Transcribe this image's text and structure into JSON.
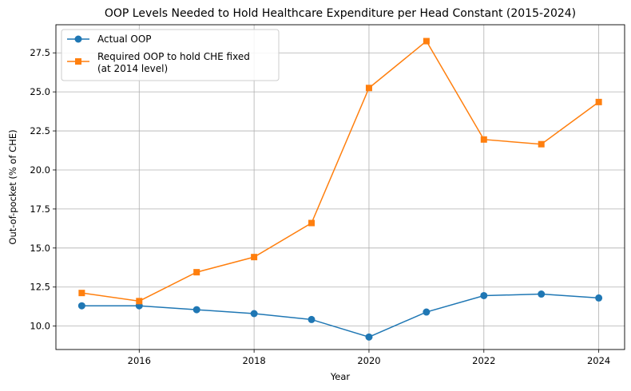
{
  "chart_data": {
    "type": "line",
    "title": "OOP Levels Needed to Hold Healthcare Expenditure per Head Constant (2015-2024)",
    "xlabel": "Year",
    "ylabel": "Out-of-pocket (% of CHE)",
    "x": [
      2015,
      2016,
      2017,
      2018,
      2019,
      2020,
      2021,
      2022,
      2023,
      2024
    ],
    "xlim": [
      2014.55,
      2024.45
    ],
    "ylim": [
      8.5,
      29.3
    ],
    "xticks": [
      2016,
      2018,
      2020,
      2022,
      2024
    ],
    "yticks": [
      10.0,
      12.5,
      15.0,
      17.5,
      20.0,
      22.5,
      25.0,
      27.5
    ],
    "ytick_labels": [
      "10.0",
      "12.5",
      "15.0",
      "17.5",
      "20.0",
      "22.5",
      "25.0",
      "27.5"
    ],
    "grid": true,
    "legend_position": "upper-left",
    "series": [
      {
        "name": "Actual OOP",
        "color": "#1f77b4",
        "marker": "circle",
        "values": [
          11.3,
          11.3,
          11.05,
          10.8,
          10.42,
          9.3,
          10.9,
          11.95,
          12.05,
          11.8
        ]
      },
      {
        "name": "Required OOP to hold CHE fixed",
        "name_line2": "(at 2014 level)",
        "color": "#ff7f0e",
        "marker": "square",
        "values": [
          12.12,
          11.6,
          13.45,
          14.42,
          16.6,
          25.25,
          28.25,
          21.95,
          21.65,
          24.35
        ]
      }
    ]
  }
}
